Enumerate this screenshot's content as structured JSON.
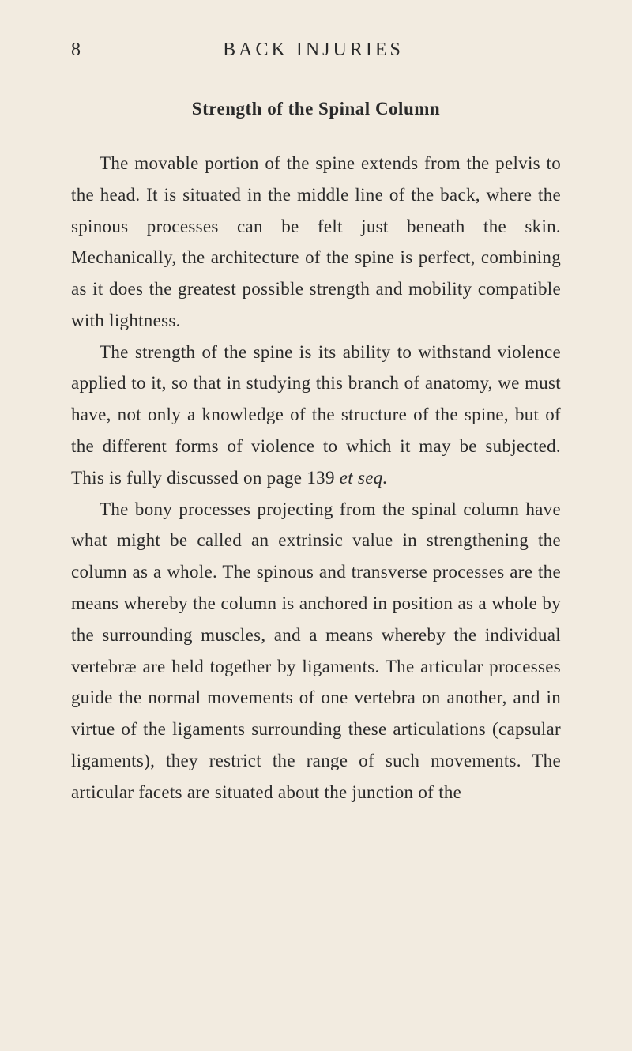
{
  "page": {
    "number": "8",
    "running_head": "BACK INJURIES",
    "background_color": "#f2ebe0",
    "text_color": "#2a2a2a",
    "font_family": "Georgia, serif"
  },
  "section": {
    "title": "Strength of the Spinal Column"
  },
  "paragraphs": [
    {
      "text": "The movable portion of the spine extends from the pelvis to the head. It is situated in the middle line of the back, where the spinous processes can be felt just beneath the skin. Mechanically, the architecture of the spine is perfect, combining as it does the greatest possible strength and mobility compatible with lightness."
    },
    {
      "text": "The strength of the spine is its ability to with­stand violence applied to it, so that in studying this branch of anatomy, we must have, not only a knowledge of the structure of the spine, but of the different forms of violence to which it may be subjected. This is fully discussed on page 139 ",
      "italic_suffix": "et seq."
    },
    {
      "text": "The bony processes projecting from the spinal column have what might be called an extrinsic value in strengthening the column as a whole. The spinous and transverse processes are the means whereby the column is anchored in position as a whole by the surrounding muscles, and a means whereby the individual vertebræ are held together by ligaments. The articular processes guide the normal movements of one vertebra on another, and in virtue of the ligaments surrounding these articulations (capsular ligaments), they restrict the range of such movements. The articular facets are situated about the junction of the"
    }
  ],
  "typography": {
    "body_fontsize": 23,
    "body_lineheight": 1.73,
    "title_fontsize": 23,
    "header_fontsize": 24,
    "header_letterspacing": 4,
    "paragraph_indent": 36
  }
}
